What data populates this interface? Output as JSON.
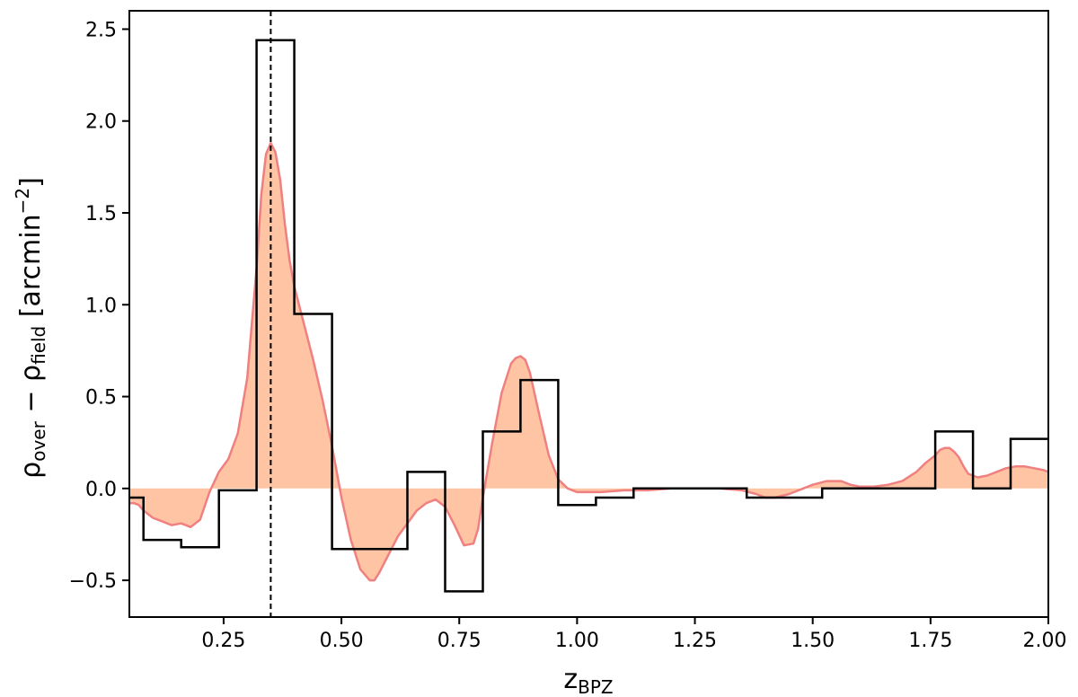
{
  "chart_data": {
    "type": "line",
    "xlabel": {
      "main": "z",
      "sub": "BPZ"
    },
    "ylabel": {
      "rho1": "ρ",
      "sub1": "over",
      "minus": " − ",
      "rho2": "ρ",
      "sub2": "field",
      "unit_open": "  [arcmin",
      "unit_sup": "−2",
      "unit_close": "]"
    },
    "xlim": [
      0.05,
      2.0
    ],
    "ylim": [
      -0.7,
      2.6
    ],
    "xticks": [
      {
        "value": 0.25,
        "label": "0.25"
      },
      {
        "value": 0.5,
        "label": "0.50"
      },
      {
        "value": 0.75,
        "label": "0.75"
      },
      {
        "value": 1.0,
        "label": "1.00"
      },
      {
        "value": 1.25,
        "label": "1.25"
      },
      {
        "value": 1.5,
        "label": "1.50"
      },
      {
        "value": 1.75,
        "label": "1.75"
      },
      {
        "value": 2.0,
        "label": "2.00"
      }
    ],
    "yticks": [
      {
        "value": -0.5,
        "label": "−0.5"
      },
      {
        "value": 0.0,
        "label": "0.0"
      },
      {
        "value": 0.5,
        "label": "0.5"
      },
      {
        "value": 1.0,
        "label": "1.0"
      },
      {
        "value": 1.5,
        "label": "1.5"
      },
      {
        "value": 2.0,
        "label": "2.0"
      },
      {
        "value": 2.5,
        "label": "2.5"
      }
    ],
    "grid": false,
    "reference_line": {
      "x": 0.35,
      "style": "dashed"
    },
    "colors": {
      "fill": "#ffc4a3",
      "curve": "#f08080",
      "step": "#000000"
    },
    "series": [
      {
        "kind": "filled-curve",
        "x": [
          0.05,
          0.06,
          0.07,
          0.08,
          0.1,
          0.12,
          0.14,
          0.16,
          0.18,
          0.2,
          0.22,
          0.24,
          0.26,
          0.28,
          0.3,
          0.32,
          0.33,
          0.34,
          0.35,
          0.36,
          0.37,
          0.38,
          0.39,
          0.4,
          0.42,
          0.44,
          0.46,
          0.48,
          0.5,
          0.52,
          0.54,
          0.56,
          0.57,
          0.58,
          0.6,
          0.62,
          0.64,
          0.66,
          0.68,
          0.7,
          0.72,
          0.74,
          0.76,
          0.78,
          0.79,
          0.8,
          0.82,
          0.84,
          0.86,
          0.87,
          0.88,
          0.89,
          0.9,
          0.92,
          0.94,
          0.96,
          0.98,
          1.0,
          1.02,
          1.05,
          1.1,
          1.15,
          1.2,
          1.25,
          1.3,
          1.35,
          1.38,
          1.4,
          1.42,
          1.45,
          1.48,
          1.5,
          1.53,
          1.56,
          1.58,
          1.6,
          1.63,
          1.66,
          1.69,
          1.72,
          1.74,
          1.76,
          1.77,
          1.78,
          1.79,
          1.8,
          1.81,
          1.82,
          1.83,
          1.85,
          1.87,
          1.89,
          1.91,
          1.93,
          1.95,
          1.97,
          1.99,
          2.0
        ],
        "y": [
          -0.08,
          -0.08,
          -0.09,
          -0.12,
          -0.16,
          -0.18,
          -0.2,
          -0.19,
          -0.21,
          -0.17,
          -0.02,
          0.09,
          0.16,
          0.3,
          0.6,
          1.2,
          1.6,
          1.82,
          1.88,
          1.83,
          1.68,
          1.44,
          1.24,
          1.1,
          0.9,
          0.7,
          0.48,
          0.23,
          -0.05,
          -0.28,
          -0.44,
          -0.5,
          -0.5,
          -0.46,
          -0.36,
          -0.26,
          -0.19,
          -0.12,
          -0.08,
          -0.06,
          -0.1,
          -0.2,
          -0.31,
          -0.3,
          -0.22,
          -0.05,
          0.25,
          0.52,
          0.68,
          0.71,
          0.72,
          0.7,
          0.63,
          0.4,
          0.18,
          0.05,
          0.0,
          -0.02,
          -0.02,
          -0.02,
          -0.01,
          -0.01,
          0.0,
          0.0,
          0.0,
          -0.01,
          -0.03,
          -0.05,
          -0.05,
          -0.03,
          0.0,
          0.02,
          0.04,
          0.04,
          0.02,
          0.01,
          0.01,
          0.02,
          0.04,
          0.09,
          0.14,
          0.18,
          0.21,
          0.22,
          0.22,
          0.2,
          0.17,
          0.12,
          0.08,
          0.06,
          0.07,
          0.09,
          0.11,
          0.12,
          0.12,
          0.11,
          0.1,
          0.09
        ]
      },
      {
        "kind": "step",
        "edges": [
          0.05,
          0.08,
          0.16,
          0.24,
          0.32,
          0.4,
          0.48,
          0.56,
          0.64,
          0.72,
          0.8,
          0.88,
          0.96,
          1.04,
          1.12,
          1.2,
          1.28,
          1.36,
          1.44,
          1.52,
          1.6,
          1.68,
          1.76,
          1.84,
          1.92,
          2.0
        ],
        "values": [
          -0.05,
          -0.28,
          -0.32,
          -0.01,
          2.44,
          0.95,
          -0.33,
          -0.33,
          0.09,
          -0.56,
          0.31,
          0.59,
          -0.09,
          -0.05,
          0.0,
          0.0,
          0.0,
          -0.05,
          -0.05,
          0.0,
          0.0,
          0.0,
          0.31,
          0.0,
          0.27
        ]
      }
    ]
  }
}
